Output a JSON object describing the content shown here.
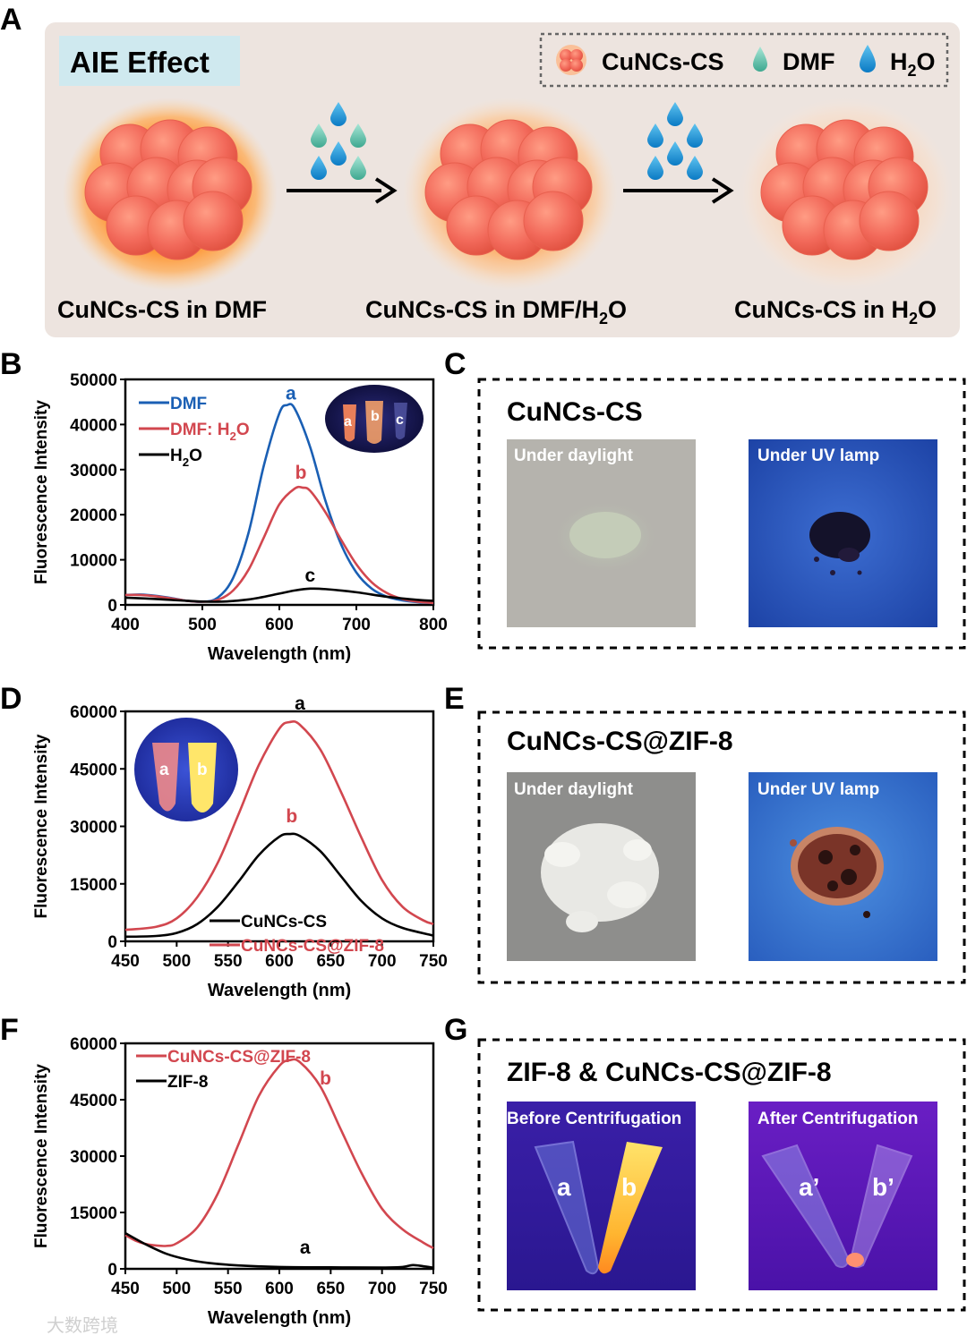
{
  "panel_labels": [
    "A",
    "B",
    "C",
    "D",
    "E",
    "F",
    "G"
  ],
  "panel_a": {
    "title": "AIE Effect",
    "legend": [
      {
        "icon": "cluster-icon",
        "label": "CuNCs-CS"
      },
      {
        "icon": "drop-icon",
        "label": "DMF",
        "color": "#6cc9b2"
      },
      {
        "icon": "drop-icon",
        "label": "H",
        "sub": "2",
        "tail": "O",
        "color": "#1f9ad6"
      }
    ],
    "states": [
      {
        "label": "CuNCs-CS in DMF"
      },
      {
        "label": "CuNCs-CS in DMF/H",
        "sub": "2",
        "tail": "O"
      },
      {
        "label": "CuNCs-CS in H",
        "sub": "2",
        "tail": "O"
      }
    ]
  },
  "panel_c": {
    "title": "CuNCs-CS",
    "photo1_label": "Under daylight",
    "photo2_label": "Under UV lamp"
  },
  "panel_e": {
    "title": "CuNCs-CS@ZIF-8",
    "photo1_label": "Under daylight",
    "photo2_label": "Under UV lamp"
  },
  "panel_g": {
    "title": "ZIF-8 & CuNCs-CS@ZIF-8",
    "photo1_label": "Before Centrifugation",
    "photo2_label": "After Centrifugation",
    "tube_labels_before": [
      "a",
      "b"
    ],
    "tube_labels_after": [
      "a’",
      "b’"
    ]
  },
  "inset_tube_labels_b": [
    "a",
    "b",
    "c"
  ],
  "inset_tube_labels_d": [
    "a",
    "b"
  ],
  "watermark": "大数跨境",
  "chart_data": [
    {
      "panel": "B",
      "type": "line",
      "xlabel": "Wavelength (nm)",
      "ylabel": "Fluorescence Intensity",
      "xlim": [
        400,
        800
      ],
      "ylim": [
        0,
        50000
      ],
      "xticks": [
        400,
        500,
        600,
        700,
        800
      ],
      "yticks": [
        0,
        10000,
        20000,
        30000,
        40000,
        50000
      ],
      "legend": [
        {
          "label": "DMF",
          "color": "#1a5fb4"
        },
        {
          "label": "DMF: H",
          "sub": "2",
          "tail": "O",
          "color": "#d2474f"
        },
        {
          "label": "H",
          "sub": "2",
          "tail": "O",
          "color": "#000000"
        }
      ],
      "series": [
        {
          "name": "DMF",
          "letter": "a",
          "color": "#1a5fb4",
          "x": [
            400,
            420,
            440,
            460,
            480,
            500,
            520,
            540,
            560,
            580,
            600,
            610,
            620,
            640,
            660,
            680,
            700,
            720,
            740,
            760,
            780,
            800
          ],
          "y": [
            2200,
            2300,
            2000,
            1500,
            900,
            700,
            1600,
            6000,
            16000,
            31000,
            42500,
            44300,
            43500,
            35000,
            23000,
            13500,
            7200,
            3600,
            1800,
            1000,
            600,
            400
          ]
        },
        {
          "name": "DMF: H2O",
          "letter": "b",
          "color": "#d2474f",
          "x": [
            400,
            420,
            440,
            460,
            480,
            500,
            520,
            540,
            560,
            580,
            600,
            620,
            630,
            640,
            660,
            680,
            700,
            720,
            740,
            760,
            780,
            800
          ],
          "y": [
            2200,
            2200,
            1900,
            1400,
            900,
            700,
            1100,
            3200,
            7800,
            15000,
            22300,
            25800,
            26000,
            25300,
            20500,
            14500,
            9000,
            5000,
            2600,
            1300,
            700,
            400
          ]
        },
        {
          "name": "H2O",
          "letter": "c",
          "color": "#000000",
          "x": [
            400,
            440,
            480,
            520,
            560,
            600,
            620,
            640,
            660,
            700,
            740,
            780,
            800
          ],
          "y": [
            1600,
            1300,
            900,
            700,
            1200,
            2500,
            3200,
            3600,
            3500,
            2800,
            1800,
            1100,
            900
          ]
        }
      ]
    },
    {
      "panel": "D",
      "type": "line",
      "xlabel": "Wavelength (nm)",
      "ylabel": "Fluorescence Intensity",
      "xlim": [
        450,
        750
      ],
      "ylim": [
        0,
        60000
      ],
      "xticks": [
        450,
        500,
        550,
        600,
        650,
        700,
        750
      ],
      "yticks": [
        0,
        15000,
        30000,
        45000,
        60000
      ],
      "legend": [
        {
          "label": "CuNCs-CS",
          "color": "#000000"
        },
        {
          "label": "CuNCs-CS@ZIF-8",
          "color": "#d2474f"
        }
      ],
      "series": [
        {
          "name": "CuNCs-CS",
          "letter": "a",
          "color": "#000000",
          "x": [
            450,
            480,
            500,
            520,
            540,
            560,
            580,
            600,
            610,
            620,
            640,
            660,
            680,
            700,
            720,
            750
          ],
          "y": [
            1200,
            1400,
            2200,
            4500,
            9000,
            15500,
            22500,
            27300,
            28000,
            27500,
            23500,
            17000,
            10500,
            6000,
            3500,
            1500
          ]
        },
        {
          "name": "CuNCs-CS@ZIF-8",
          "letter": "b",
          "color": "#d2474f",
          "x": [
            450,
            480,
            500,
            520,
            540,
            560,
            580,
            600,
            610,
            620,
            640,
            660,
            680,
            700,
            720,
            740,
            750
          ],
          "y": [
            3000,
            3800,
            6000,
            11500,
            20500,
            33000,
            46000,
            55500,
            57200,
            56500,
            50000,
            39000,
            27000,
            16000,
            9000,
            5500,
            4500
          ]
        }
      ]
    },
    {
      "panel": "F",
      "type": "line",
      "xlabel": "Wavelength (nm)",
      "ylabel": "Fluorescence Intensity",
      "xlim": [
        450,
        750
      ],
      "ylim": [
        0,
        60000
      ],
      "xticks": [
        450,
        500,
        550,
        600,
        650,
        700,
        750
      ],
      "yticks": [
        0,
        15000,
        30000,
        45000,
        60000
      ],
      "legend": [
        {
          "label": "CuNCs-CS@ZIF-8",
          "color": "#d2474f"
        },
        {
          "label": "ZIF-8",
          "color": "#000000"
        }
      ],
      "series": [
        {
          "name": "CuNCs-CS@ZIF-8",
          "letter": "b",
          "color": "#d2474f",
          "x": [
            450,
            460,
            470,
            480,
            490,
            500,
            520,
            540,
            560,
            580,
            600,
            610,
            620,
            640,
            660,
            680,
            700,
            720,
            740,
            750
          ],
          "y": [
            9000,
            7500,
            6600,
            6200,
            6100,
            6800,
            11000,
            20000,
            33000,
            46000,
            54000,
            55500,
            55000,
            48500,
            37000,
            25500,
            16000,
            10500,
            7000,
            5500
          ]
        },
        {
          "name": "ZIF-8",
          "letter": "a",
          "color": "#000000",
          "x": [
            450,
            470,
            490,
            510,
            530,
            560,
            600,
            650,
            700,
            720,
            730,
            740,
            750
          ],
          "y": [
            9500,
            6500,
            4000,
            2500,
            1600,
            900,
            500,
            400,
            350,
            500,
            1000,
            700,
            300
          ]
        }
      ]
    }
  ]
}
